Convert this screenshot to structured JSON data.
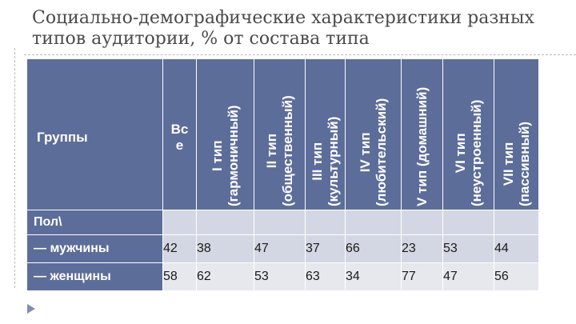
{
  "title": "Социально-демографические характеристики разных типов аудитории, % от состава типа",
  "table": {
    "group_header": "Группы",
    "all_header": "Все",
    "columns": [
      {
        "label": "I тип (гармоничный)"
      },
      {
        "label": "II тип (общественный)"
      },
      {
        "label": "III тип (культурный)"
      },
      {
        "label": "IV тип (любительский)"
      },
      {
        "label": "V тип (домашний)"
      },
      {
        "label": "VI тип (неустроенный)"
      },
      {
        "label": "VII тип (пассивный)"
      }
    ],
    "section_label": "Пол\\",
    "rows": [
      {
        "label": "— мужчины",
        "values": [
          "42",
          "38",
          "47",
          "37",
          "66",
          "23",
          "53",
          "44"
        ]
      },
      {
        "label": "— женщины",
        "values": [
          "58",
          "62",
          "53",
          "63",
          "34",
          "77",
          "47",
          "56"
        ]
      }
    ]
  },
  "colors": {
    "header_bg": "#5d6d9a",
    "row_dark": "#d3d7e3",
    "row_light": "#e6e8ee"
  }
}
